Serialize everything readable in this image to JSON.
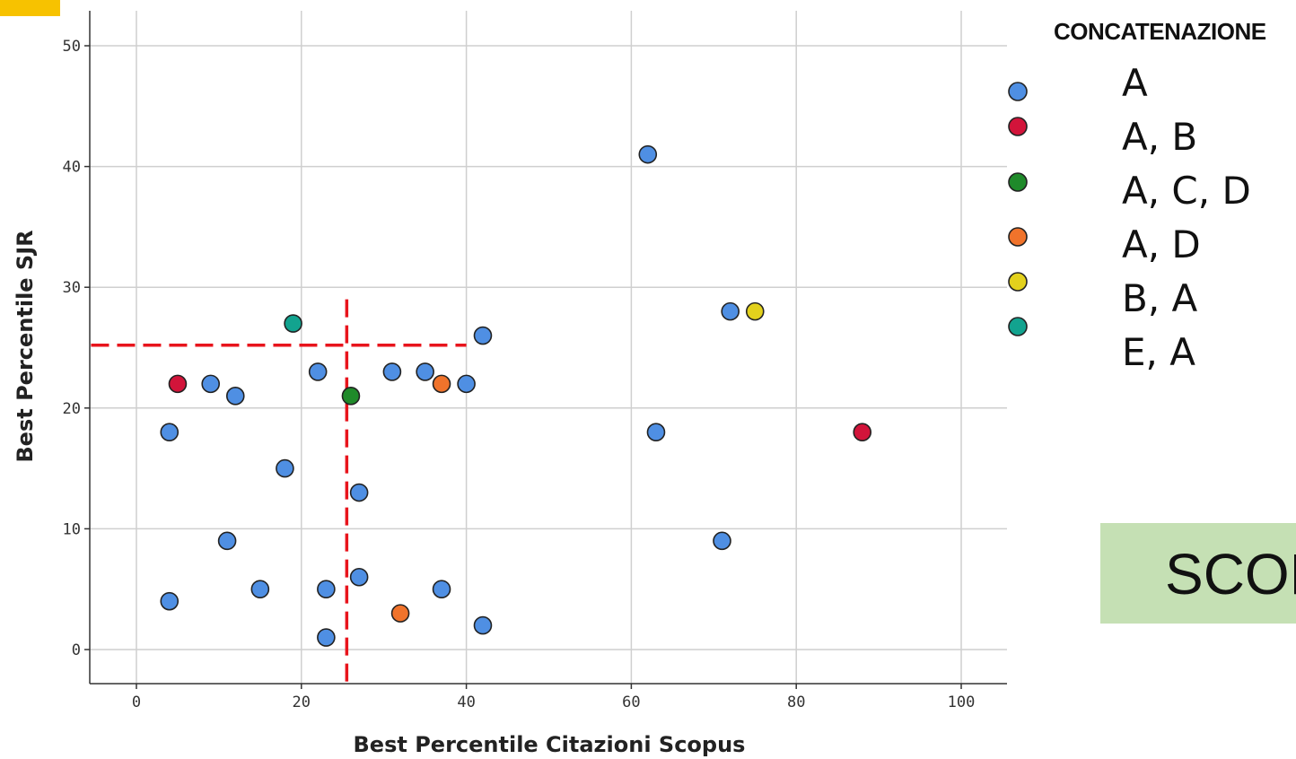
{
  "chart_data": {
    "type": "scatter",
    "xlabel": "Best Percentile Citazioni Scopus",
    "ylabel": "Best Percentile SJR",
    "xlim": [
      -5.5,
      105
    ],
    "ylim": [
      -2.7,
      52.8
    ],
    "xticks": [
      "0",
      "20",
      "40",
      "60",
      "80",
      "100"
    ],
    "yticks": [
      "0",
      "10",
      "20",
      "30",
      "40",
      "50"
    ],
    "grid": true,
    "legend": {
      "title": "CONCATENAZIONE",
      "position": "right",
      "entries": [
        {
          "label": "A",
          "color": "#4f8fe3"
        },
        {
          "label": "A, B",
          "color": "#d2143a"
        },
        {
          "label": "A, C, D",
          "color": "#1f8a2a"
        },
        {
          "label": "A, D",
          "color": "#f0732b"
        },
        {
          "label": "B, A",
          "color": "#e3d11c"
        },
        {
          "label": "E, A",
          "color": "#12a38f"
        }
      ]
    },
    "series": [
      {
        "name": "A",
        "color": "#4f8fe3",
        "points": [
          [
            62,
            41
          ],
          [
            72,
            28
          ],
          [
            42,
            26
          ],
          [
            22,
            23
          ],
          [
            31,
            23
          ],
          [
            35,
            23
          ],
          [
            9,
            22
          ],
          [
            40,
            22
          ],
          [
            12,
            21
          ],
          [
            4,
            18
          ],
          [
            63,
            18
          ],
          [
            18,
            15
          ],
          [
            27,
            13
          ],
          [
            11,
            9
          ],
          [
            71,
            9
          ],
          [
            27,
            6
          ],
          [
            4,
            4
          ],
          [
            15,
            5
          ],
          [
            23,
            5
          ],
          [
            37,
            5
          ],
          [
            42,
            2
          ],
          [
            23,
            1
          ]
        ]
      },
      {
        "name": "A, B",
        "color": "#d2143a",
        "points": [
          [
            5,
            22
          ],
          [
            88,
            18
          ]
        ]
      },
      {
        "name": "A, C, D",
        "color": "#1f8a2a",
        "points": [
          [
            26,
            21
          ]
        ]
      },
      {
        "name": "A, D",
        "color": "#f0732b",
        "points": [
          [
            37,
            22
          ],
          [
            32,
            3
          ]
        ]
      },
      {
        "name": "B, A",
        "color": "#e3d11c",
        "points": [
          [
            75,
            28
          ]
        ]
      },
      {
        "name": "E, A",
        "color": "#12a38f",
        "points": [
          [
            19,
            27
          ]
        ]
      }
    ],
    "reference_lines": [
      {
        "orientation": "vertical",
        "x": 25.5,
        "y_from": -2.7,
        "y_to": 29,
        "color": "#e8141c",
        "style": "dashed"
      },
      {
        "orientation": "horizontal",
        "y": 25.2,
        "x_from": -5.5,
        "x_to": 40,
        "color": "#e8141c",
        "style": "dashed"
      }
    ]
  },
  "side_box": {
    "label": "SCOPUS"
  }
}
